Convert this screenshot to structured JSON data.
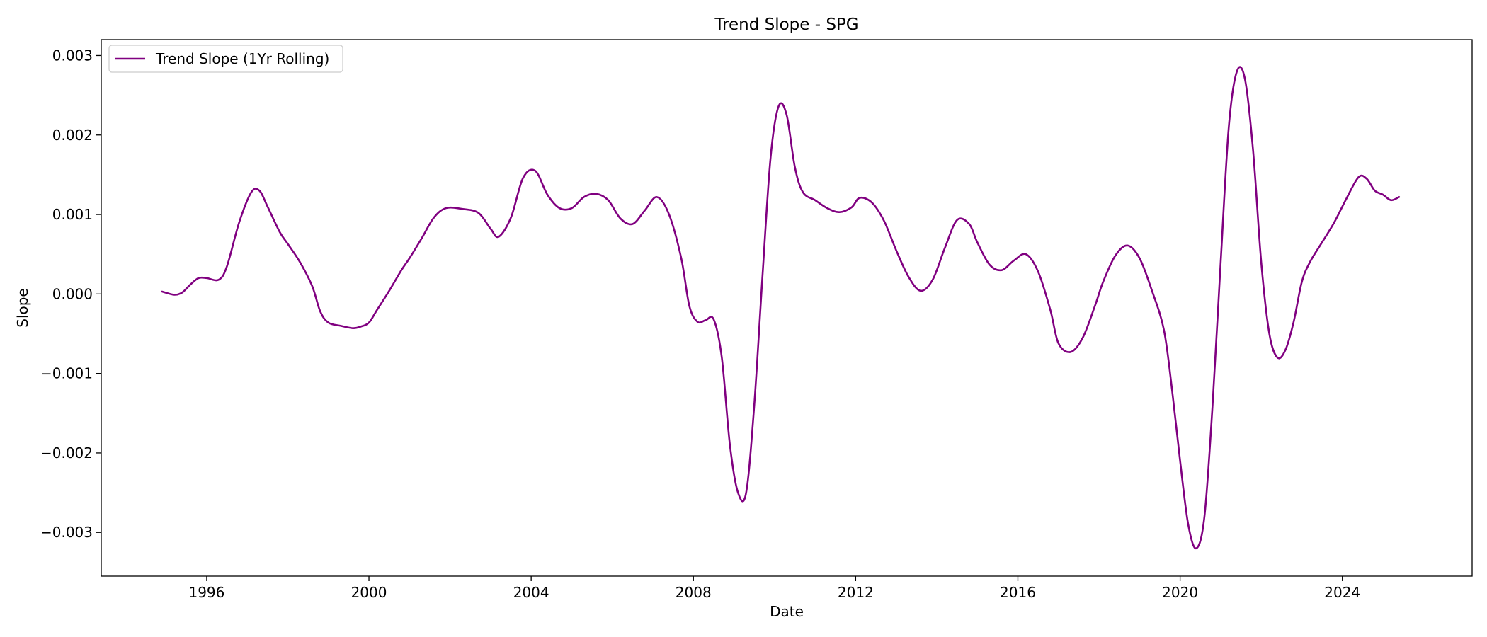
{
  "chart_data": {
    "type": "line",
    "title": "Trend Slope - SPG",
    "xlabel": "Date",
    "ylabel": "Slope",
    "xlim": [
      1993.4,
      2027.2
    ],
    "ylim": [
      -0.00355,
      0.0032
    ],
    "xticks": [
      1996,
      2000,
      2004,
      2008,
      2012,
      2016,
      2020,
      2024
    ],
    "xtick_labels": [
      "1996",
      "2000",
      "2004",
      "2008",
      "2012",
      "2016",
      "2020",
      "2024"
    ],
    "yticks": [
      0.003,
      0.002,
      0.001,
      0.0,
      -0.001,
      -0.002,
      -0.003
    ],
    "ytick_labels": [
      "0.003",
      "0.002",
      "0.001",
      "0.000",
      "−0.001",
      "−0.002",
      "−0.003"
    ],
    "grid": false,
    "legend": "top-left",
    "series": [
      {
        "name": "Trend Slope (1Yr Rolling)",
        "color": "#800080",
        "x": [
          1994.9,
          1995.2,
          1995.4,
          1995.6,
          1995.8,
          1996.0,
          1996.3,
          1996.5,
          1996.8,
          1997.1,
          1997.3,
          1997.5,
          1997.8,
          1998.0,
          1998.3,
          1998.6,
          1998.8,
          1999.0,
          1999.3,
          1999.6,
          1999.8,
          2000.0,
          2000.2,
          2000.5,
          2000.8,
          2001.0,
          2001.3,
          2001.6,
          2001.9,
          2002.3,
          2002.7,
          2003.0,
          2003.2,
          2003.5,
          2003.8,
          2004.1,
          2004.4,
          2004.7,
          2005.0,
          2005.3,
          2005.6,
          2005.9,
          2006.2,
          2006.5,
          2006.8,
          2007.1,
          2007.4,
          2007.7,
          2007.9,
          2008.1,
          2008.3,
          2008.5,
          2008.7,
          2008.9,
          2009.1,
          2009.3,
          2009.5,
          2009.7,
          2009.9,
          2010.1,
          2010.3,
          2010.5,
          2010.7,
          2011.0,
          2011.3,
          2011.6,
          2011.9,
          2012.1,
          2012.4,
          2012.7,
          2013.0,
          2013.3,
          2013.6,
          2013.9,
          2014.2,
          2014.5,
          2014.8,
          2015.0,
          2015.3,
          2015.6,
          2015.9,
          2016.2,
          2016.5,
          2016.8,
          2017.0,
          2017.3,
          2017.6,
          2017.9,
          2018.1,
          2018.4,
          2018.7,
          2019.0,
          2019.3,
          2019.6,
          2019.8,
          2020.0,
          2020.2,
          2020.4,
          2020.6,
          2020.8,
          2021.0,
          2021.2,
          2021.4,
          2021.6,
          2021.8,
          2022.0,
          2022.2,
          2022.4,
          2022.6,
          2022.8,
          2023.0,
          2023.2,
          2023.5,
          2023.8,
          2024.1,
          2024.4,
          2024.6,
          2024.8,
          2025.0,
          2025.2,
          2025.4
        ],
        "y": [
          3e-05,
          -1e-05,
          2e-05,
          0.00012,
          0.0002,
          0.0002,
          0.00018,
          0.00035,
          0.0009,
          0.00128,
          0.0013,
          0.0011,
          0.00078,
          0.00063,
          0.0004,
          0.0001,
          -0.00022,
          -0.00036,
          -0.0004,
          -0.00043,
          -0.00041,
          -0.00036,
          -0.0002,
          4e-05,
          0.0003,
          0.00045,
          0.0007,
          0.00096,
          0.00108,
          0.00107,
          0.00102,
          0.00082,
          0.00072,
          0.00096,
          0.00146,
          0.00155,
          0.00125,
          0.00108,
          0.00108,
          0.00122,
          0.00126,
          0.00118,
          0.00095,
          0.00088,
          0.00105,
          0.00122,
          0.001,
          0.00045,
          -0.00015,
          -0.00035,
          -0.00033,
          -0.00032,
          -0.0008,
          -0.0019,
          -0.0025,
          -0.0025,
          -0.0014,
          0.0002,
          0.0017,
          0.00236,
          0.00225,
          0.0016,
          0.00128,
          0.00118,
          0.00108,
          0.00103,
          0.00109,
          0.00121,
          0.00115,
          0.00092,
          0.00055,
          0.00022,
          4e-05,
          0.00018,
          0.00058,
          0.00093,
          0.00088,
          0.00065,
          0.00037,
          0.0003,
          0.00042,
          0.0005,
          0.00028,
          -0.0002,
          -0.00062,
          -0.00073,
          -0.00055,
          -0.00015,
          0.00015,
          0.00048,
          0.00061,
          0.00045,
          5e-05,
          -0.00045,
          -0.0012,
          -0.0021,
          -0.0029,
          -0.0032,
          -0.0028,
          -0.0014,
          0.0004,
          0.0021,
          0.0028,
          0.0027,
          0.0018,
          0.0004,
          -0.0005,
          -0.0008,
          -0.0007,
          -0.00035,
          0.00015,
          0.0004,
          0.00065,
          0.0009,
          0.0012,
          0.00147,
          0.00145,
          0.0013,
          0.00125,
          0.00118,
          0.00122
        ]
      }
    ]
  }
}
